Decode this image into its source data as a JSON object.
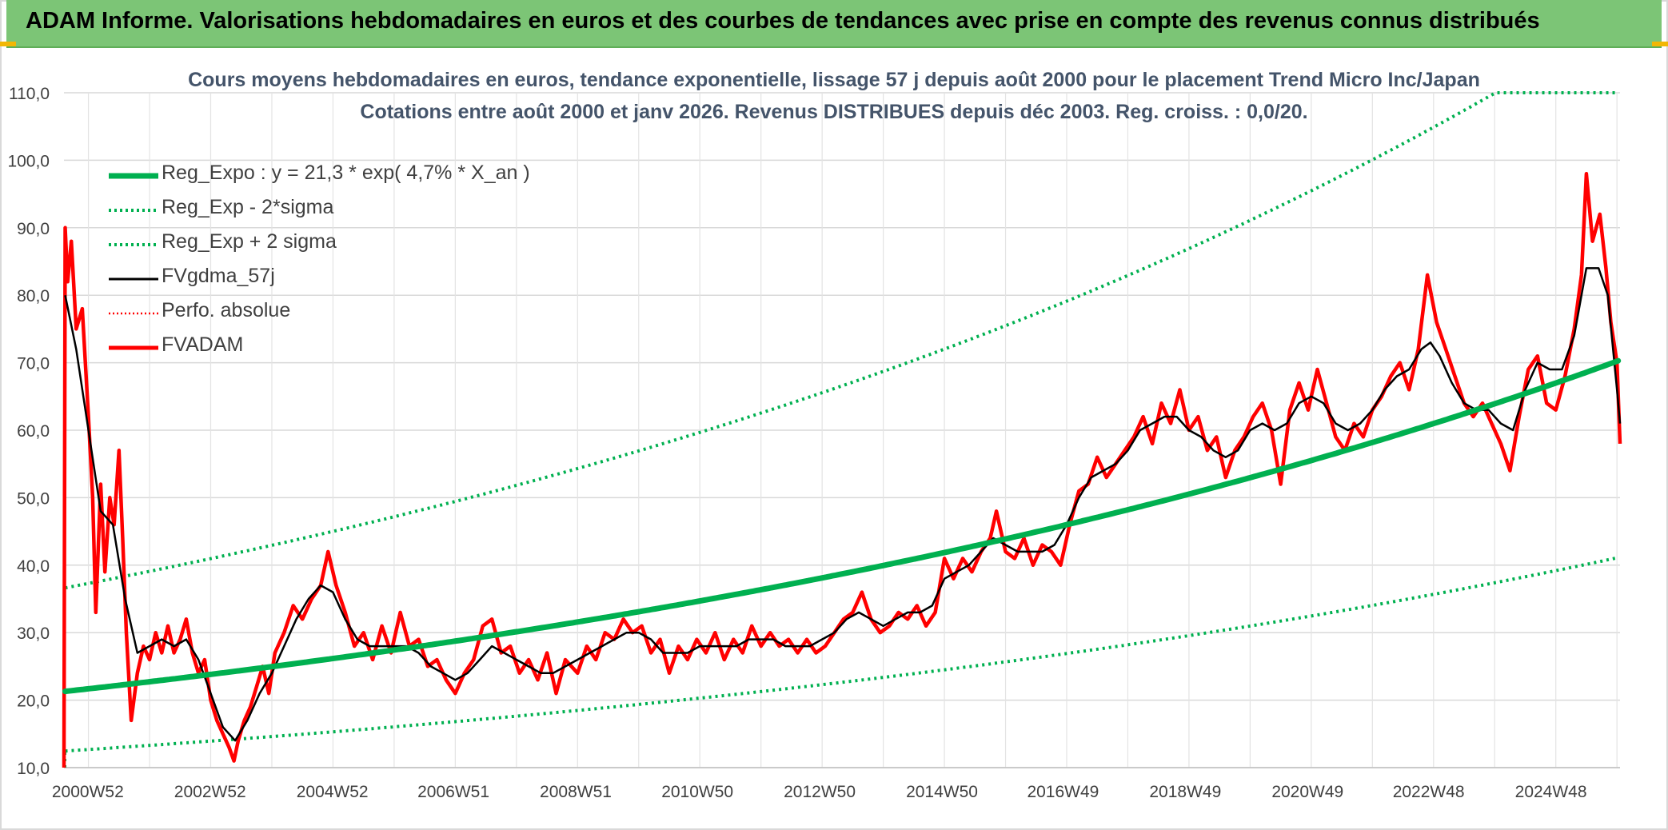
{
  "banner": {
    "title": "ADAM Informe. Valorisations hebdomadaires en euros et des courbes de tendances avec prise en compte des revenus connus distribués"
  },
  "chart_data": {
    "type": "line",
    "title_line1": "Cours moyens hebdomadaires en euros, tendance exponentielle, lissage 57 j depuis août 2000 pour le placement Trend Micro Inc/Japan",
    "title_line2": "Cotations entre août 2000 et janv 2026. Revenus DISTRIBUES depuis déc 2003. Reg. croiss. : 0,0/20.",
    "ylim": [
      10,
      110
    ],
    "y_ticks": [
      "10,0",
      "20,0",
      "30,0",
      "40,0",
      "50,0",
      "60,0",
      "70,0",
      "80,0",
      "90,0",
      "100,0",
      "110,0"
    ],
    "x_ticks": [
      {
        "label": "2000W52",
        "year": 2000.99
      },
      {
        "label": "2002W52",
        "year": 2002.99
      },
      {
        "label": "2004W52",
        "year": 2004.99
      },
      {
        "label": "2006W51",
        "year": 2006.97
      },
      {
        "label": "2008W51",
        "year": 2008.97
      },
      {
        "label": "2010W50",
        "year": 2010.96
      },
      {
        "label": "2012W50",
        "year": 2012.96
      },
      {
        "label": "2014W50",
        "year": 2014.96
      },
      {
        "label": "2016W49",
        "year": 2016.94
      },
      {
        "label": "2018W49",
        "year": 2018.94
      },
      {
        "label": "2020W49",
        "year": 2020.94
      },
      {
        "label": "2022W48",
        "year": 2022.92
      },
      {
        "label": "2024W48",
        "year": 2024.92
      }
    ],
    "xlim": [
      2000.6,
      2026.05
    ],
    "grid": true,
    "legend_position": "top-left",
    "colors": {
      "reg": "#00b050",
      "band": "#00b050",
      "fv": "#000000",
      "perfo": "#ff0000",
      "adam": "#ff0000"
    },
    "series": [
      {
        "key": "reg",
        "name": "Reg_Expo : y = 21,3 * exp( 4,7% *  X_an )",
        "style": "thick",
        "color": "#00b050"
      },
      {
        "key": "lower",
        "name": "Reg_Exp - 2*sigma",
        "style": "dotted",
        "color": "#00b050"
      },
      {
        "key": "upper",
        "name": "Reg_Exp + 2 sigma",
        "style": "dotted",
        "color": "#00b050"
      },
      {
        "key": "fv",
        "name": "FVgdma_57j",
        "style": "solid",
        "color": "#000000"
      },
      {
        "key": "perfo",
        "name": "Perfo. absolue",
        "style": "dotted",
        "color": "#ff0000"
      },
      {
        "key": "adam",
        "name": "FVADAM",
        "style": "thick",
        "color": "#ff0000"
      }
    ],
    "regression": {
      "a": 21.3,
      "rate": 0.047,
      "x0": 2000.62,
      "lower_factor": 0.585,
      "upper_factor": 1.72
    },
    "adam_points": [
      [
        2000.6,
        10
      ],
      [
        2000.62,
        90
      ],
      [
        2000.66,
        82
      ],
      [
        2000.72,
        88
      ],
      [
        2000.8,
        75
      ],
      [
        2000.9,
        78
      ],
      [
        2001.0,
        62
      ],
      [
        2001.07,
        50
      ],
      [
        2001.12,
        33
      ],
      [
        2001.2,
        52
      ],
      [
        2001.27,
        39
      ],
      [
        2001.35,
        50
      ],
      [
        2001.42,
        46
      ],
      [
        2001.5,
        57
      ],
      [
        2001.56,
        44
      ],
      [
        2001.62,
        30
      ],
      [
        2001.7,
        17
      ],
      [
        2001.8,
        24
      ],
      [
        2001.9,
        28
      ],
      [
        2002.0,
        26
      ],
      [
        2002.1,
        30
      ],
      [
        2002.2,
        27
      ],
      [
        2002.3,
        31
      ],
      [
        2002.4,
        27
      ],
      [
        2002.5,
        29
      ],
      [
        2002.6,
        32
      ],
      [
        2002.7,
        27
      ],
      [
        2002.8,
        24
      ],
      [
        2002.9,
        26
      ],
      [
        2003.0,
        20
      ],
      [
        2003.1,
        17
      ],
      [
        2003.2,
        15
      ],
      [
        2003.3,
        13
      ],
      [
        2003.38,
        11
      ],
      [
        2003.45,
        14
      ],
      [
        2003.55,
        17
      ],
      [
        2003.65,
        19
      ],
      [
        2003.75,
        22
      ],
      [
        2003.85,
        25
      ],
      [
        2003.95,
        21
      ],
      [
        2004.05,
        27
      ],
      [
        2004.2,
        30
      ],
      [
        2004.35,
        34
      ],
      [
        2004.5,
        32
      ],
      [
        2004.65,
        35
      ],
      [
        2004.8,
        37
      ],
      [
        2004.92,
        42
      ],
      [
        2005.05,
        37
      ],
      [
        2005.2,
        33
      ],
      [
        2005.35,
        28
      ],
      [
        2005.5,
        30
      ],
      [
        2005.65,
        26
      ],
      [
        2005.8,
        31
      ],
      [
        2005.95,
        27
      ],
      [
        2006.1,
        33
      ],
      [
        2006.25,
        28
      ],
      [
        2006.4,
        29
      ],
      [
        2006.55,
        25
      ],
      [
        2006.7,
        26
      ],
      [
        2006.85,
        23
      ],
      [
        2007.0,
        21
      ],
      [
        2007.15,
        24
      ],
      [
        2007.3,
        26
      ],
      [
        2007.45,
        31
      ],
      [
        2007.6,
        32
      ],
      [
        2007.75,
        27
      ],
      [
        2007.9,
        28
      ],
      [
        2008.05,
        24
      ],
      [
        2008.2,
        26
      ],
      [
        2008.35,
        23
      ],
      [
        2008.5,
        27
      ],
      [
        2008.65,
        21
      ],
      [
        2008.8,
        26
      ],
      [
        2009.0,
        24
      ],
      [
        2009.15,
        28
      ],
      [
        2009.3,
        26
      ],
      [
        2009.45,
        30
      ],
      [
        2009.6,
        29
      ],
      [
        2009.75,
        32
      ],
      [
        2009.9,
        30
      ],
      [
        2010.05,
        31
      ],
      [
        2010.2,
        27
      ],
      [
        2010.35,
        29
      ],
      [
        2010.5,
        24
      ],
      [
        2010.65,
        28
      ],
      [
        2010.8,
        26
      ],
      [
        2010.95,
        29
      ],
      [
        2011.1,
        27
      ],
      [
        2011.25,
        30
      ],
      [
        2011.4,
        26
      ],
      [
        2011.55,
        29
      ],
      [
        2011.7,
        27
      ],
      [
        2011.85,
        31
      ],
      [
        2012.0,
        28
      ],
      [
        2012.15,
        30
      ],
      [
        2012.3,
        28
      ],
      [
        2012.45,
        29
      ],
      [
        2012.6,
        27
      ],
      [
        2012.75,
        29
      ],
      [
        2012.9,
        27
      ],
      [
        2013.05,
        28
      ],
      [
        2013.2,
        30
      ],
      [
        2013.35,
        32
      ],
      [
        2013.5,
        33
      ],
      [
        2013.65,
        36
      ],
      [
        2013.8,
        32
      ],
      [
        2013.95,
        30
      ],
      [
        2014.1,
        31
      ],
      [
        2014.25,
        33
      ],
      [
        2014.4,
        32
      ],
      [
        2014.55,
        34
      ],
      [
        2014.7,
        31
      ],
      [
        2014.85,
        33
      ],
      [
        2015.0,
        41
      ],
      [
        2015.15,
        38
      ],
      [
        2015.3,
        41
      ],
      [
        2015.45,
        39
      ],
      [
        2015.6,
        42
      ],
      [
        2015.75,
        44
      ],
      [
        2015.85,
        48
      ],
      [
        2016.0,
        42
      ],
      [
        2016.15,
        41
      ],
      [
        2016.3,
        44
      ],
      [
        2016.45,
        40
      ],
      [
        2016.6,
        43
      ],
      [
        2016.75,
        42
      ],
      [
        2016.9,
        40
      ],
      [
        2017.05,
        46
      ],
      [
        2017.2,
        51
      ],
      [
        2017.35,
        52
      ],
      [
        2017.5,
        56
      ],
      [
        2017.65,
        53
      ],
      [
        2017.8,
        55
      ],
      [
        2017.95,
        57
      ],
      [
        2018.1,
        59
      ],
      [
        2018.25,
        62
      ],
      [
        2018.4,
        58
      ],
      [
        2018.55,
        64
      ],
      [
        2018.7,
        61
      ],
      [
        2018.85,
        66
      ],
      [
        2019.0,
        60
      ],
      [
        2019.15,
        62
      ],
      [
        2019.3,
        57
      ],
      [
        2019.45,
        59
      ],
      [
        2019.6,
        53
      ],
      [
        2019.75,
        57
      ],
      [
        2019.9,
        59
      ],
      [
        2020.05,
        62
      ],
      [
        2020.2,
        64
      ],
      [
        2020.35,
        60
      ],
      [
        2020.5,
        52
      ],
      [
        2020.65,
        63
      ],
      [
        2020.8,
        67
      ],
      [
        2020.95,
        63
      ],
      [
        2021.1,
        69
      ],
      [
        2021.25,
        64
      ],
      [
        2021.4,
        59
      ],
      [
        2021.55,
        57
      ],
      [
        2021.7,
        61
      ],
      [
        2021.85,
        59
      ],
      [
        2022.0,
        63
      ],
      [
        2022.15,
        65
      ],
      [
        2022.3,
        68
      ],
      [
        2022.45,
        70
      ],
      [
        2022.6,
        66
      ],
      [
        2022.75,
        72
      ],
      [
        2022.9,
        83
      ],
      [
        2023.05,
        76
      ],
      [
        2023.2,
        72
      ],
      [
        2023.35,
        68
      ],
      [
        2023.5,
        64
      ],
      [
        2023.65,
        62
      ],
      [
        2023.8,
        64
      ],
      [
        2023.95,
        61
      ],
      [
        2024.1,
        58
      ],
      [
        2024.25,
        54
      ],
      [
        2024.4,
        62
      ],
      [
        2024.55,
        69
      ],
      [
        2024.7,
        71
      ],
      [
        2024.85,
        64
      ],
      [
        2025.0,
        63
      ],
      [
        2025.15,
        68
      ],
      [
        2025.3,
        75
      ],
      [
        2025.42,
        83
      ],
      [
        2025.5,
        98
      ],
      [
        2025.6,
        88
      ],
      [
        2025.72,
        92
      ],
      [
        2025.82,
        84
      ],
      [
        2025.9,
        76
      ],
      [
        2026.0,
        70
      ],
      [
        2026.05,
        58
      ]
    ],
    "fv_points": [
      [
        2000.62,
        80
      ],
      [
        2000.8,
        72
      ],
      [
        2001.0,
        60
      ],
      [
        2001.2,
        48
      ],
      [
        2001.4,
        46
      ],
      [
        2001.6,
        35
      ],
      [
        2001.8,
        27
      ],
      [
        2002.0,
        28
      ],
      [
        2002.2,
        29
      ],
      [
        2002.4,
        28
      ],
      [
        2002.6,
        29
      ],
      [
        2002.8,
        26
      ],
      [
        2003.0,
        21
      ],
      [
        2003.2,
        16
      ],
      [
        2003.4,
        14
      ],
      [
        2003.6,
        17
      ],
      [
        2003.8,
        21
      ],
      [
        2004.0,
        24
      ],
      [
        2004.2,
        28
      ],
      [
        2004.4,
        32
      ],
      [
        2004.6,
        35
      ],
      [
        2004.8,
        37
      ],
      [
        2005.0,
        36
      ],
      [
        2005.2,
        32
      ],
      [
        2005.4,
        29
      ],
      [
        2005.6,
        28
      ],
      [
        2005.8,
        28
      ],
      [
        2006.0,
        28
      ],
      [
        2006.2,
        28
      ],
      [
        2006.4,
        27
      ],
      [
        2006.6,
        25
      ],
      [
        2006.8,
        24
      ],
      [
        2007.0,
        23
      ],
      [
        2007.2,
        24
      ],
      [
        2007.4,
        26
      ],
      [
        2007.6,
        28
      ],
      [
        2007.8,
        27
      ],
      [
        2008.0,
        26
      ],
      [
        2008.2,
        25
      ],
      [
        2008.4,
        24
      ],
      [
        2008.6,
        24
      ],
      [
        2008.8,
        25
      ],
      [
        2009.0,
        26
      ],
      [
        2009.2,
        27
      ],
      [
        2009.4,
        28
      ],
      [
        2009.6,
        29
      ],
      [
        2009.8,
        30
      ],
      [
        2010.0,
        30
      ],
      [
        2010.2,
        29
      ],
      [
        2010.4,
        27
      ],
      [
        2010.6,
        27
      ],
      [
        2010.8,
        27
      ],
      [
        2011.0,
        28
      ],
      [
        2011.2,
        28
      ],
      [
        2011.4,
        28
      ],
      [
        2011.6,
        28
      ],
      [
        2011.8,
        29
      ],
      [
        2012.0,
        29
      ],
      [
        2012.2,
        29
      ],
      [
        2012.4,
        28
      ],
      [
        2012.6,
        28
      ],
      [
        2012.8,
        28
      ],
      [
        2013.0,
        29
      ],
      [
        2013.2,
        30
      ],
      [
        2013.4,
        32
      ],
      [
        2013.6,
        33
      ],
      [
        2013.8,
        32
      ],
      [
        2014.0,
        31
      ],
      [
        2014.2,
        32
      ],
      [
        2014.4,
        33
      ],
      [
        2014.6,
        33
      ],
      [
        2014.8,
        34
      ],
      [
        2015.0,
        38
      ],
      [
        2015.2,
        39
      ],
      [
        2015.4,
        40
      ],
      [
        2015.6,
        42
      ],
      [
        2015.8,
        44
      ],
      [
        2016.0,
        43
      ],
      [
        2016.2,
        42
      ],
      [
        2016.4,
        42
      ],
      [
        2016.6,
        42
      ],
      [
        2016.8,
        43
      ],
      [
        2017.0,
        46
      ],
      [
        2017.2,
        50
      ],
      [
        2017.4,
        53
      ],
      [
        2017.6,
        54
      ],
      [
        2017.8,
        55
      ],
      [
        2018.0,
        57
      ],
      [
        2018.2,
        60
      ],
      [
        2018.4,
        61
      ],
      [
        2018.6,
        62
      ],
      [
        2018.8,
        62
      ],
      [
        2019.0,
        60
      ],
      [
        2019.2,
        59
      ],
      [
        2019.4,
        57
      ],
      [
        2019.6,
        56
      ],
      [
        2019.8,
        57
      ],
      [
        2020.0,
        60
      ],
      [
        2020.2,
        61
      ],
      [
        2020.4,
        60
      ],
      [
        2020.6,
        61
      ],
      [
        2020.8,
        64
      ],
      [
        2021.0,
        65
      ],
      [
        2021.2,
        64
      ],
      [
        2021.4,
        61
      ],
      [
        2021.6,
        60
      ],
      [
        2021.8,
        61
      ],
      [
        2022.0,
        63
      ],
      [
        2022.2,
        66
      ],
      [
        2022.4,
        68
      ],
      [
        2022.6,
        69
      ],
      [
        2022.8,
        72
      ],
      [
        2022.95,
        73
      ],
      [
        2023.1,
        71
      ],
      [
        2023.3,
        67
      ],
      [
        2023.5,
        64
      ],
      [
        2023.7,
        63
      ],
      [
        2023.9,
        63
      ],
      [
        2024.1,
        61
      ],
      [
        2024.3,
        60
      ],
      [
        2024.5,
        66
      ],
      [
        2024.7,
        70
      ],
      [
        2024.9,
        69
      ],
      [
        2025.1,
        69
      ],
      [
        2025.3,
        74
      ],
      [
        2025.5,
        84
      ],
      [
        2025.7,
        84
      ],
      [
        2025.85,
        80
      ],
      [
        2026.0,
        66
      ],
      [
        2026.05,
        61
      ]
    ]
  }
}
